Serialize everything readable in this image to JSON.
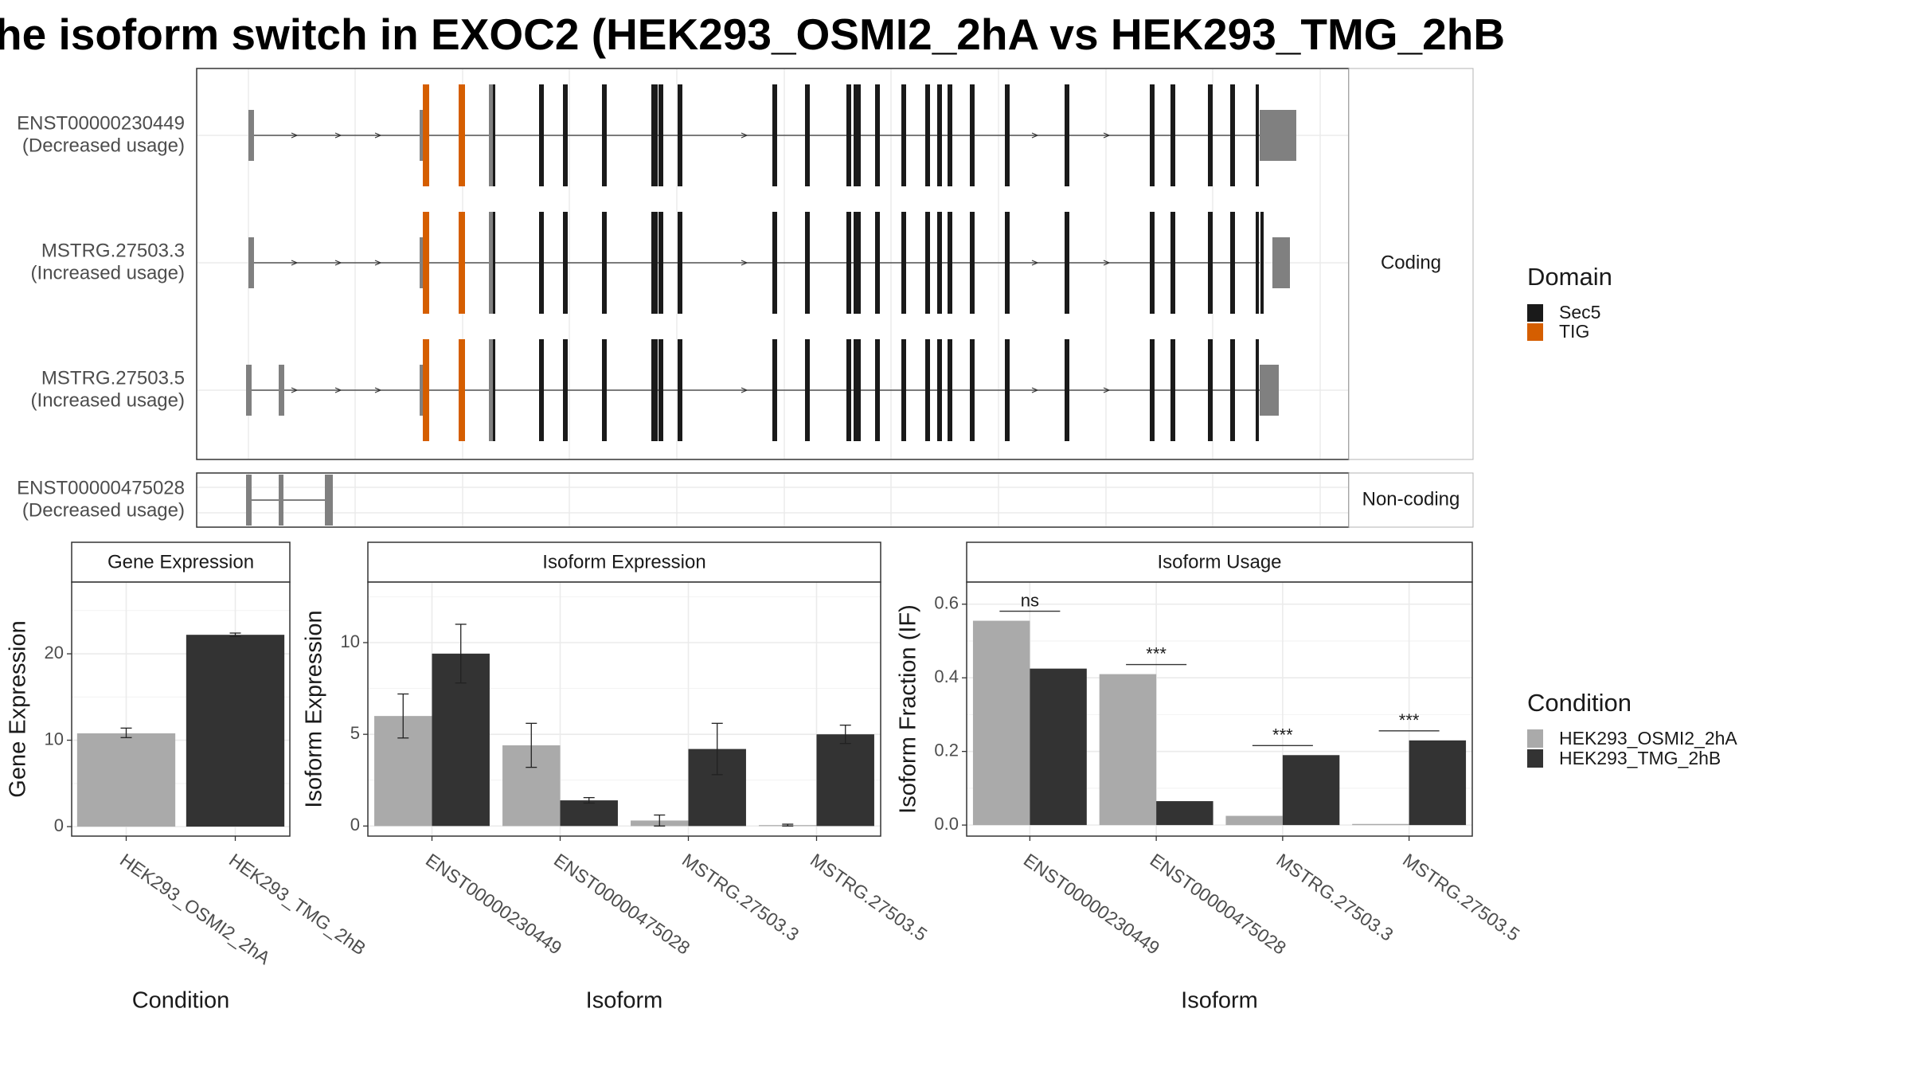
{
  "title": "he isoform switch in EXOC2 (HEK293_OSMI2_2hA vs HEK293_TMG_2hB",
  "colors": {
    "sec5": "#1a1a1a",
    "tig": "#d55e00",
    "other": "#808080",
    "osmi2": "#aaaaaa",
    "tmg": "#333333"
  },
  "transcript_panel": {
    "facets": [
      "Coding",
      "Non-coding"
    ],
    "transcripts": [
      {
        "name": "ENST00000230449",
        "usage": "(Decreased usage)"
      },
      {
        "name": "MSTRG.27503.3",
        "usage": "(Increased usage)"
      },
      {
        "name": "MSTRG.27503.5",
        "usage": "(Increased usage)"
      },
      {
        "name": "ENST00000475028",
        "usage": "(Decreased usage)"
      }
    ]
  },
  "domain_legend": {
    "title": "Domain",
    "items": [
      "Sec5",
      "TIG"
    ]
  },
  "condition_legend": {
    "title": "Condition",
    "items": [
      "HEK293_OSMI2_2hA",
      "HEK293_TMG_2hB"
    ]
  },
  "chart_data": [
    {
      "type": "bar",
      "title": "Gene Expression",
      "xlabel": "Condition",
      "ylabel": "Gene Expression",
      "categories": [
        "HEK293_OSMI2_2hA",
        "HEK293_TMG_2hB"
      ],
      "values": [
        10.8,
        22.2
      ],
      "errors": [
        [
          10.3,
          11.4
        ],
        [
          22.0,
          22.4
        ]
      ],
      "ylim": [
        -1.1,
        28.3
      ],
      "yticks": [
        0,
        10,
        20
      ]
    },
    {
      "type": "bar",
      "title": "Isoform Expression",
      "xlabel": "Isoform",
      "ylabel": "Isoform Expression",
      "categories": [
        "ENST00000230449",
        "ENST00000475028",
        "MSTRG.27503.3",
        "MSTRG.27503.5"
      ],
      "series": [
        {
          "name": "HEK293_OSMI2_2hA",
          "values": [
            6.0,
            4.4,
            0.3,
            0.05
          ],
          "errors": [
            [
              4.8,
              7.2
            ],
            [
              3.2,
              5.6
            ],
            [
              0.0,
              0.6
            ],
            [
              0.0,
              0.1
            ]
          ]
        },
        {
          "name": "HEK293_TMG_2hB",
          "values": [
            9.4,
            1.4,
            4.2,
            5.0
          ],
          "errors": [
            [
              7.8,
              11.0
            ],
            [
              1.25,
              1.55
            ],
            [
              2.8,
              5.6
            ],
            [
              4.5,
              5.5
            ]
          ]
        }
      ],
      "ylim": [
        -0.55,
        13.3
      ],
      "yticks": [
        0,
        5,
        10
      ]
    },
    {
      "type": "bar",
      "title": "Isoform Usage",
      "xlabel": "Isoform",
      "ylabel": "Isoform Fraction (IF)",
      "categories": [
        "ENST00000230449",
        "ENST00000475028",
        "MSTRG.27503.3",
        "MSTRG.27503.5"
      ],
      "series": [
        {
          "name": "HEK293_OSMI2_2hA",
          "values": [
            0.555,
            0.41,
            0.025,
            0.003
          ]
        },
        {
          "name": "HEK293_TMG_2hB",
          "values": [
            0.425,
            0.065,
            0.19,
            0.23
          ]
        }
      ],
      "significance": [
        "ns",
        "***",
        "***",
        "***"
      ],
      "ylim": [
        -0.03,
        0.66
      ],
      "yticks": [
        0.0,
        0.2,
        0.4,
        0.6
      ]
    }
  ]
}
